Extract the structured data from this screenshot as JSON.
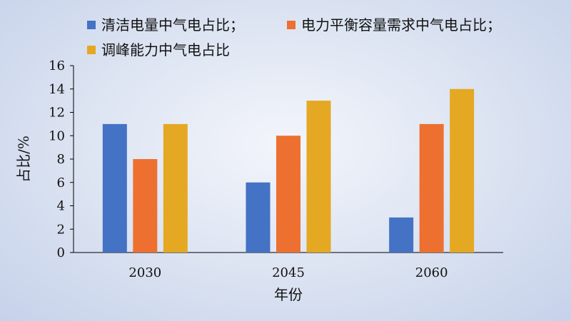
{
  "chart_data": {
    "type": "bar",
    "categories": [
      "2030",
      "2045",
      "2060"
    ],
    "series": [
      {
        "name": "清洁电量中气电占比；",
        "color": "#4472c4",
        "values": [
          11,
          6,
          3
        ]
      },
      {
        "name": "电力平衡容量需求中气电占比；",
        "color": "#ed7031",
        "values": [
          8,
          10,
          11
        ]
      },
      {
        "name": "调峰能力中气电占比",
        "color": "#e5a823",
        "values": [
          11,
          13,
          14
        ]
      }
    ],
    "xlabel": "年份",
    "ylabel": "占比/%",
    "ylim": [
      0,
      16
    ],
    "yticks": [
      "0",
      "2",
      "4",
      "6",
      "8",
      "10",
      "12",
      "14",
      "16"
    ],
    "grid": false,
    "legend_position": "top"
  }
}
